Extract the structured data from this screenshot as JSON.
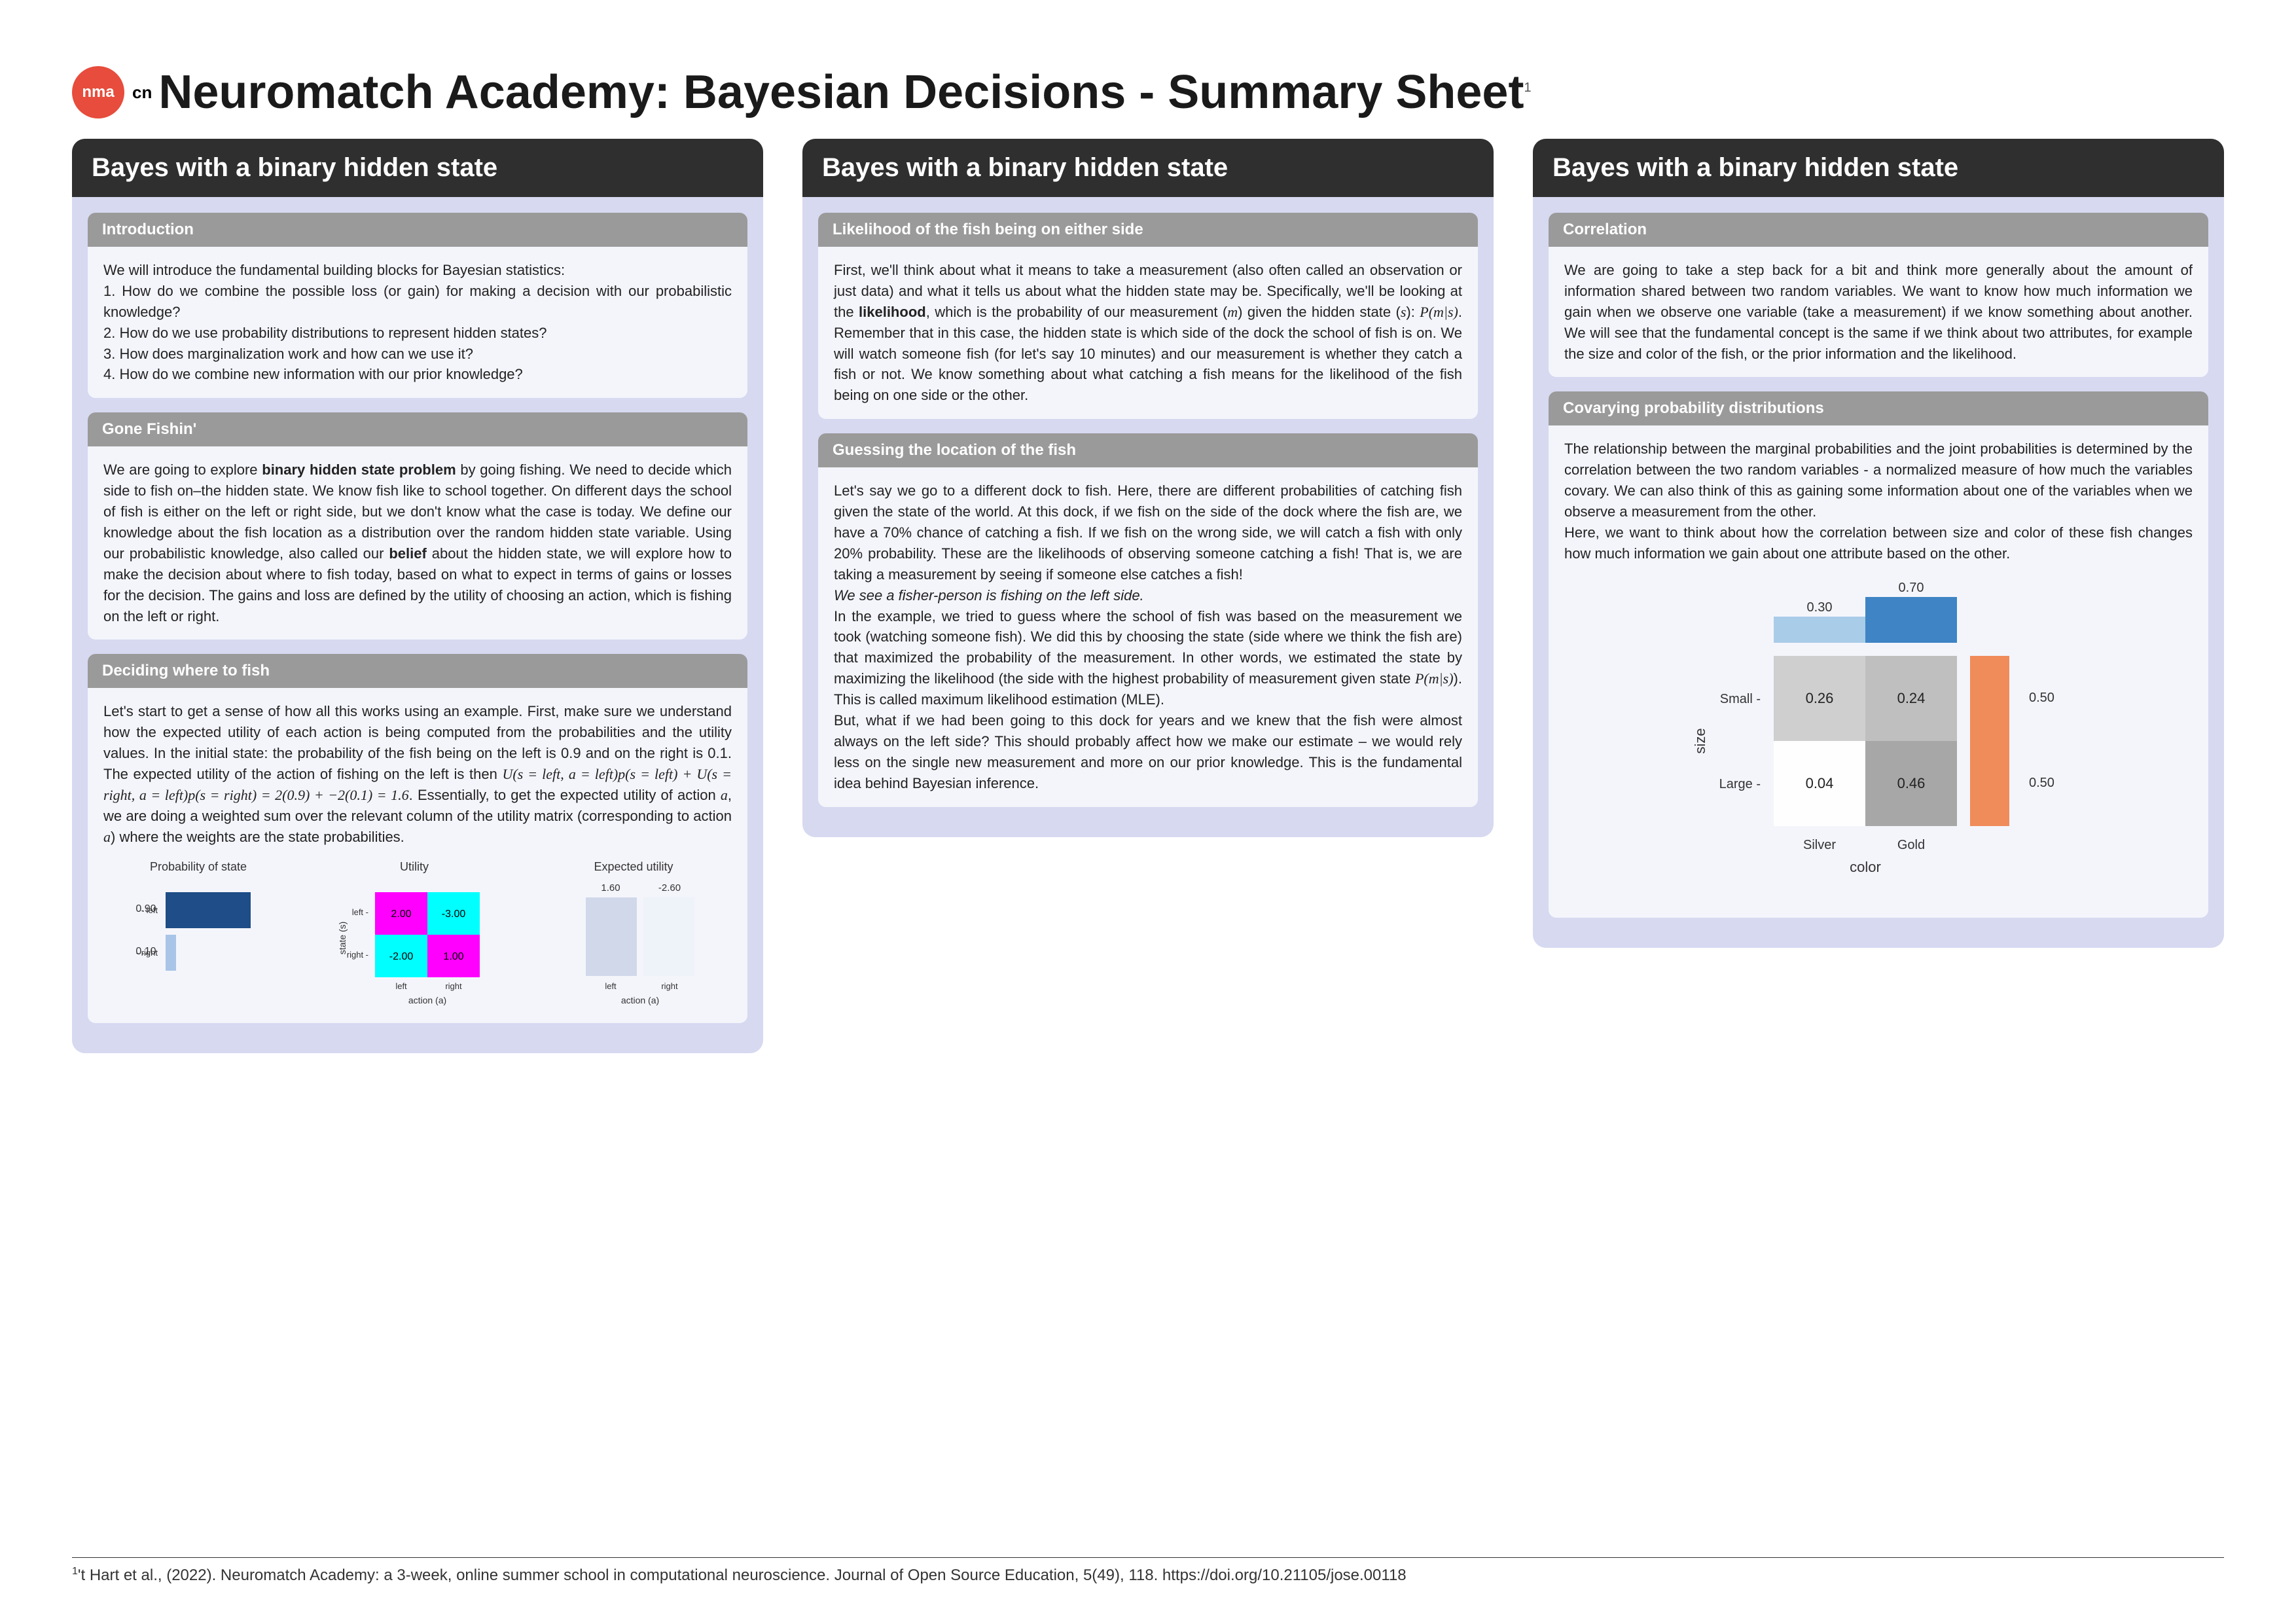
{
  "header": {
    "logo_text": "nma",
    "logo_sub": "cn",
    "title": "Neuromatch Academy: Bayesian Decisions - Summary Sheet",
    "title_super": "1"
  },
  "columns": [
    {
      "title": "Bayes with a binary hidden state",
      "sections": [
        {
          "header": "Introduction",
          "body_html": "We will introduce the fundamental building blocks for Bayesian statistics:<br>1. How do we combine the possible loss (or gain) for making a decision with our probabilistic knowledge?<br>2. How do we use probability distributions to represent hidden states?<br>3. How does marginalization work and how can we use it?<br>4. How do we combine new information with our prior knowledge?"
        },
        {
          "header": "Gone Fishin'",
          "body_html": "We are going to explore <b>binary hidden state problem</b> by going fishing. We need to decide which side to fish on–the hidden state. We know fish like to school together. On different days the school of fish is either on the left or right side, but we don't know what the case is today. We define our knowledge about the fish location as a distribution over the random hidden state variable. Using our probabilistic knowledge, also called our <b>belief</b> about the hidden state, we will explore how to make the decision about where to fish today, based on what to expect in terms of gains or losses for the decision. The gains and loss are defined by the utility of choosing an action, which is fishing on the left or right."
        },
        {
          "header": "Deciding where to fish",
          "body_html": "Let's start to get a sense of how all this works using an example. First, make sure we understand how the expected utility of each action is being computed from the probabilities and the utility values. In the initial state: the probability of the fish being on the left is 0.9 and on the right is 0.1. The expected utility of the action of fishing on the left is then <span class='math'>U(s = left, a = left)p(s = left) + U(s = right, a = left)p(s = right) = 2(0.9) + −2(0.1) = 1.6</span>. Essentially, to get the expected utility of action <span class='math'>a</span>, we are doing a weighted sum over the relevant column of the utility matrix (corresponding to action <span class='math'>a</span>) where the weights are the state probabilities.",
          "chart": "prob_utility"
        }
      ]
    },
    {
      "title": "Bayes with a binary hidden state",
      "sections": [
        {
          "header": "Likelihood of the fish being on either side",
          "body_html": "First, we'll think about what it means to take a measurement (also often called an observation or just data) and what it tells us about what the hidden state may be. Specifically, we'll be looking at the <b>likelihood</b>, which is the probability of our measurement (<span class='math'>m</span>) given the hidden state (<span class='math'>s</span>): <span class='math'>P(m|s)</span>. Remember that in this case, the hidden state is which side of the dock the school of fish is on. We will watch someone fish (for let's say 10 minutes) and our measurement is whether they catch a fish or not. We know something about what catching a fish means for the likelihood of the fish being on one side or the other."
        },
        {
          "header": "Guessing the location of the fish",
          "body_html": "Let's say we go to a different dock to fish. Here, there are different probabilities of catching fish given the state of the world. At this dock, if we fish on the side of the dock where the fish are, we have a 70% chance of catching a fish. If we fish on the wrong side, we will catch a fish with only 20% probability. These are the likelihoods of observing someone catching a fish! That is, we are taking a measurement by seeing if someone else catches a fish!<br><i>We see a fisher-person is fishing on the left side.</i><br>In the example, we tried to guess where the school of fish was based on the measurement we took (watching someone fish). We did this by choosing the state (side where we think the fish are) that maximized the probability of the measurement. In other words, we estimated the state by maximizing the likelihood (the side with the highest probability of measurement given state <span class='math'>P(m|s)</span>). This is called maximum likelihood estimation (MLE).<br>But, what if we had been going to this dock for years and we knew that the fish were almost always on the left side? This should probably affect how we make our estimate – we would rely less on the single new measurement and more on our prior knowledge. This is the fundamental idea behind Bayesian inference."
        }
      ]
    },
    {
      "title": "Bayes with a binary hidden state",
      "sections": [
        {
          "header": "Correlation",
          "body_html": "We are going to take a step back for a bit and think more generally about the amount of information shared between two random variables. We want to know how much information we gain when we observe one variable (take a measurement) if we know something about another. We will see that the fundamental concept is the same if we think about two attributes, for example the size and color of the fish, or the prior information and the likelihood."
        },
        {
          "header": "Covarying probability distributions",
          "body_html": "The relationship between the marginal probabilities and the joint probabilities is determined by the correlation between the two random variables - a normalized measure of how much the variables covary. We can also think of this as gaining some information about one of the variables when we observe a measurement from the other.<br>Here, we want to think about how the correlation between size and color of these fish changes how much information we gain about one attribute based on the other.",
          "chart": "correlation"
        }
      ]
    }
  ],
  "charts": {
    "prob_utility": {
      "subcharts": [
        {
          "title": "Probability of state",
          "type": "bar_horizontal",
          "rows": [
            "left",
            "right"
          ],
          "values": [
            0.9,
            0.1
          ],
          "colors": [
            "#1e4d87",
            "#a8c5e8"
          ],
          "bg": "#ffffff"
        },
        {
          "title": "Utility",
          "type": "heatmap2x2",
          "row_labels": [
            "left",
            "right"
          ],
          "col_labels": [
            "left",
            "right"
          ],
          "cells": [
            [
              "2.00",
              "-3.00"
            ],
            [
              "-2.00",
              "1.00"
            ]
          ],
          "colors": [
            [
              "#ff00ff",
              "#00ffff"
            ],
            [
              "#00ffff",
              "#ff00ff"
            ]
          ],
          "xlabel": "action (a)",
          "ylabel": "state (s)"
        },
        {
          "title": "Expected utility",
          "type": "bar_two",
          "labels": [
            "left",
            "right"
          ],
          "top_values": [
            "1.60",
            "-2.60"
          ],
          "colors": [
            "#d0d8ea",
            "#eef2f9"
          ],
          "xlabel": "action (a)"
        }
      ]
    },
    "correlation": {
      "type": "heatmap_with_marginals",
      "row_labels": [
        "Small",
        "Large"
      ],
      "col_labels": [
        "Silver",
        "Gold"
      ],
      "cells": [
        [
          "0.26",
          "0.24"
        ],
        [
          "0.04",
          "0.46"
        ]
      ],
      "cell_colors": [
        [
          "#cfcfcf",
          "#bfbfbf"
        ],
        [
          "#fefefe",
          "#a7a7a7"
        ]
      ],
      "col_marginals": [
        "0.30",
        "0.70"
      ],
      "col_marginal_colors": [
        "#a9cce8",
        "#3f84c4"
      ],
      "row_marginals": [
        "0.50",
        "0.50"
      ],
      "row_marginal_colors": [
        "#f08b5a",
        "#f08b5a"
      ],
      "xlabel": "color",
      "ylabel": "size"
    }
  },
  "footnote": {
    "marker": "1",
    "text": "'t Hart et al., (2022). Neuromatch Academy: a 3-week, online summer school in computational neuroscience. Journal of Open Source Education, 5(49), 118. https://doi.org/10.21105/jose.00118"
  }
}
